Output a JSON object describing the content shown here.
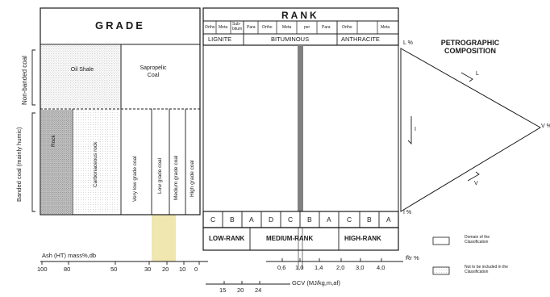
{
  "grade": {
    "title": "GRADE",
    "sections": {
      "top": "Non-banded coal",
      "bottom": "Banded coal (mainly humic)"
    },
    "oil_shale": "Oil Shale",
    "sapropelic": "Sapropelic Coal",
    "columns": [
      "Rock",
      "Carbonaceous rock",
      "Very low grade coal",
      "Low grade coal",
      "Medium grade coal",
      "High grade coal"
    ]
  },
  "rank": {
    "title": "RANK",
    "subclasses": [
      "Ortho",
      "Meta",
      "Sub-bitum",
      "Para",
      "Ortho",
      "Meta",
      "per",
      "Para",
      "Ortho",
      "Meta"
    ],
    "groups": [
      "LIGNITE",
      "BITUMINOUS",
      "ANTHRACITE"
    ],
    "letters": [
      "C",
      "B",
      "A",
      "D",
      "C",
      "B",
      "A",
      "C",
      "B",
      "A"
    ],
    "bands": [
      "LOW-RANK",
      "MEDIUM-RANK",
      "HIGH-RANK"
    ]
  },
  "petrographic": {
    "title": "PETROGRAPHIC COMPOSITION",
    "top_label": "L %",
    "bottom_label": "I %",
    "apex_label": "V %",
    "edge_top": "L",
    "edge_mid": "I",
    "edge_bottom": "V"
  },
  "axes": {
    "ash_label": "Ash (HT) mass%,db",
    "ash_ticks": [
      "100",
      "80",
      "50",
      "30",
      "20",
      "10",
      "0"
    ],
    "ro_label": "R̄r %",
    "ro_ticks": [
      "0,6",
      "1,0",
      "1,4",
      "2,0",
      "3,0",
      "4,0"
    ],
    "gcv_label": "GCV (MJ/kg,m,af)",
    "gcv_ticks": [
      "15",
      "20",
      "24"
    ]
  },
  "legend": [
    {
      "label": "Domain of the Classification"
    },
    {
      "label": "Not to be included in the Classification"
    }
  ],
  "colors": {
    "highlight": "#efe6b0",
    "rank_bar": "#808080",
    "stipple": "#9a9a9a"
  }
}
